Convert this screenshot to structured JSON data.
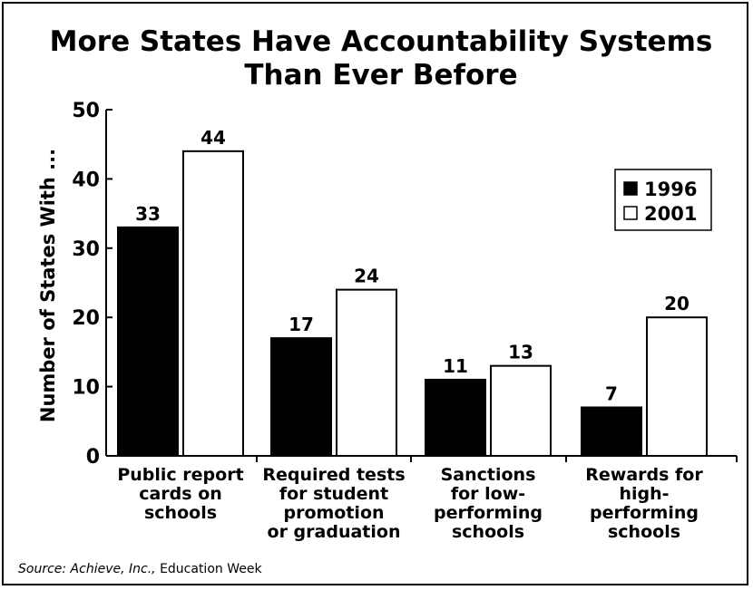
{
  "chart_data": {
    "type": "bar",
    "title": [
      "More States Have Accountability Systems",
      "Than Ever Before"
    ],
    "ylabel": "Number of States With ...",
    "ylim": [
      0,
      50
    ],
    "yticks": [
      0,
      10,
      20,
      30,
      40,
      50
    ],
    "categories": [
      [
        "Public report",
        "cards on",
        "schools"
      ],
      [
        "Required tests",
        "for student",
        "promotion",
        "or graduation"
      ],
      [
        "Sanctions",
        "for low-",
        "performing",
        "schools"
      ],
      [
        "Rewards for",
        "high-",
        "performing",
        "schools"
      ]
    ],
    "series": [
      {
        "name": "1996",
        "values": [
          33,
          17,
          11,
          7
        ],
        "fill": "#000000"
      },
      {
        "name": "2001",
        "values": [
          44,
          24,
          13,
          20
        ],
        "fill": "#ffffff"
      }
    ],
    "legend": "top-right",
    "grid": false,
    "source": {
      "prefix": "Source: Achieve, Inc., ",
      "publication": "Education Week"
    }
  }
}
